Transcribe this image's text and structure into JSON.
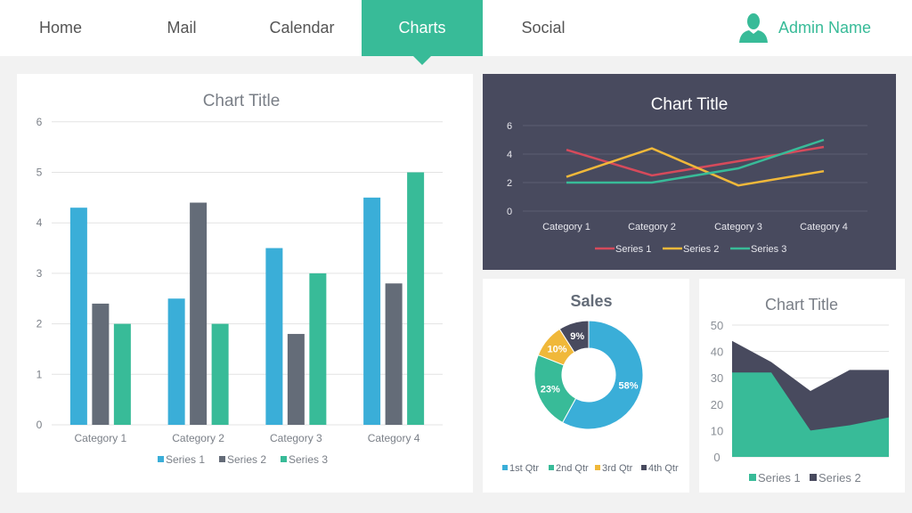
{
  "nav": {
    "items": [
      {
        "label": "Home"
      },
      {
        "label": "Mail"
      },
      {
        "label": "Calendar"
      },
      {
        "label": "Charts"
      },
      {
        "label": "Social"
      }
    ],
    "active": "Charts",
    "user": "Admin Name",
    "user_icon": "user-icon"
  },
  "colors": {
    "accent": "#38bb98",
    "blue": "#3aaed8",
    "gray": "#646c78",
    "teal": "#38bb98",
    "red": "#d64a5b",
    "yellow": "#f0b83a",
    "navy": "#484a5e"
  },
  "chart_data": [
    {
      "type": "bar",
      "title": "Chart Title",
      "categories": [
        "Category 1",
        "Category 2",
        "Category 3",
        "Category 4"
      ],
      "ylim": [
        0,
        6
      ],
      "yticks": [
        "0",
        "1",
        "2",
        "3",
        "4",
        "5",
        "6"
      ],
      "grid": true,
      "legend": "bottom",
      "series": [
        {
          "name": "Series 1",
          "values": [
            4.3,
            2.5,
            3.5,
            4.5
          ]
        },
        {
          "name": "Series 2",
          "values": [
            2.4,
            4.4,
            1.8,
            2.8
          ]
        },
        {
          "name": "Series 3",
          "values": [
            2,
            2,
            3,
            5
          ]
        }
      ]
    },
    {
      "type": "line",
      "title": "Chart Title",
      "categories": [
        "Category 1",
        "Category 2",
        "Category 3",
        "Category 4"
      ],
      "ylim": [
        0,
        6
      ],
      "yticks": [
        "0",
        "2",
        "4",
        "6"
      ],
      "grid": true,
      "legend": "bottom",
      "series": [
        {
          "name": "Series 1",
          "values": [
            4.3,
            2.5,
            3.5,
            4.5
          ]
        },
        {
          "name": "Series 2",
          "values": [
            2.4,
            4.4,
            1.8,
            2.8
          ]
        },
        {
          "name": "Series 3",
          "values": [
            2,
            2,
            3,
            5
          ]
        }
      ]
    },
    {
      "type": "pie",
      "title": "Sales",
      "donut": true,
      "legend": "bottom",
      "slices": [
        {
          "name": "1st Qtr",
          "value": 58,
          "label": "58%"
        },
        {
          "name": "2nd Qtr",
          "value": 23,
          "label": "23%"
        },
        {
          "name": "3rd Qtr",
          "value": 10,
          "label": "10%"
        },
        {
          "name": "4th Qtr",
          "value": 9,
          "label": "9%"
        }
      ]
    },
    {
      "type": "area",
      "stacked": true,
      "title": "Chart Title",
      "ylim": [
        0,
        50
      ],
      "yticks": [
        "0",
        "10",
        "20",
        "30",
        "40",
        "50"
      ],
      "grid": true,
      "legend": "bottom",
      "series": [
        {
          "name": "Series 1",
          "values": [
            32,
            32,
            10,
            12,
            15
          ]
        },
        {
          "name": "Series 2",
          "values": [
            12,
            4,
            15,
            21,
            18
          ]
        }
      ]
    }
  ]
}
